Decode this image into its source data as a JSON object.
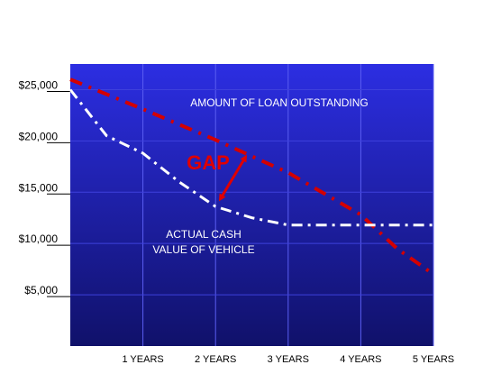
{
  "chart_data": {
    "type": "line",
    "x_tick_labels": [
      "1 YEARS",
      "2 YEARS",
      "3 YEARS",
      "4 YEARS",
      "5 YEARS"
    ],
    "y_tick_labels": [
      "$25,000",
      "$20,000",
      "$15,000",
      "$10,000",
      "$5,000"
    ],
    "y_ticks": [
      25000,
      20000,
      15000,
      10000,
      5000
    ],
    "xlim": [
      0,
      5
    ],
    "ylim": [
      0,
      27500
    ],
    "grid": true,
    "series": [
      {
        "name": "AMOUNT OF LOAN OUTSTANDING",
        "color": "#d40000",
        "style": "dash-dot",
        "points": [
          [
            0,
            26000
          ],
          [
            1,
            23100
          ],
          [
            2,
            20100
          ],
          [
            3,
            16900
          ],
          [
            4,
            12800
          ],
          [
            4.5,
            9500
          ],
          [
            5,
            7000
          ]
        ]
      },
      {
        "name": "ACTUAL CASH VALUE OF VEHICLE",
        "color": "#ffffff",
        "style": "dash-dot",
        "points": [
          [
            0,
            25000
          ],
          [
            0.5,
            20500
          ],
          [
            1,
            18800
          ],
          [
            1.5,
            16000
          ],
          [
            2,
            13600
          ],
          [
            2.5,
            12500
          ],
          [
            3,
            11800
          ],
          [
            4,
            11800
          ],
          [
            5,
            11800
          ]
        ]
      }
    ],
    "annotations": {
      "gap_label": "GAP",
      "loan_label": "AMOUNT OF LOAN OUTSTANDING",
      "vehicle_label_line1": "ACTUAL CASH",
      "vehicle_label_line2": "VALUE OF VEHICLE"
    },
    "colors": {
      "plot_top": "#2b2de0",
      "plot_bottom": "#11116a",
      "gap_color": "#e00000"
    }
  }
}
